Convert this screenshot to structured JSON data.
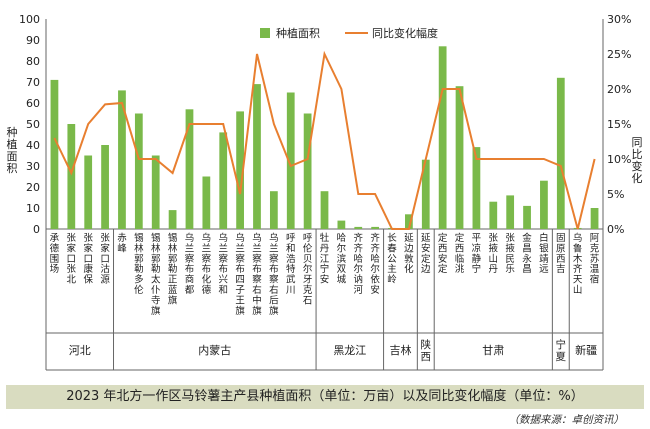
{
  "chart_data": {
    "type": "bar",
    "ylabel": "种植面积",
    "y2label": "同比变化",
    "ylim": [
      0,
      100
    ],
    "y2lim": [
      0,
      30
    ],
    "yticks": [
      "0",
      "10",
      "20",
      "30",
      "40",
      "50",
      "60",
      "70",
      "80",
      "90",
      "100"
    ],
    "y2ticks": [
      "0%",
      "5%",
      "10%",
      "15%",
      "20%",
      "25%",
      "30%"
    ],
    "legend_position": "top",
    "categories": [
      "承德围场",
      "张家口张北",
      "张家口康保",
      "张家口沽源",
      "赤峰",
      "锡林郭勒多伦",
      "锡林郭勒太仆寺旗",
      "锡林郭勒正蓝旗",
      "乌兰察布商都",
      "乌兰察布化德",
      "乌兰察布兴和",
      "乌兰察布四子王旗",
      "乌兰察布察右中旗",
      "乌兰察布察右后旗",
      "呼和浩特武川",
      "呼伦贝尔牙克石",
      "牡丹江宁安",
      "哈尔滨双城",
      "齐齐哈尔讷河",
      "齐齐哈尔依安",
      "长春公主岭",
      "延边敦化",
      "延安定边",
      "定西安定",
      "定西临洮",
      "平凉静宁",
      "张掖山丹",
      "张掖民乐",
      "金昌永昌",
      "白银靖远",
      "固原西吉",
      "乌鲁木齐天山",
      "阿克苏温宿"
    ],
    "series": [
      {
        "name": "种植面积",
        "type": "bar",
        "color": "#7ab94a",
        "values": [
          71,
          50,
          35,
          40,
          66,
          55,
          35,
          9,
          57,
          25,
          46,
          56,
          69,
          18,
          65,
          55,
          18,
          4,
          1,
          1,
          0.5,
          7,
          33,
          87,
          68,
          39,
          13,
          16,
          11,
          23,
          72,
          0.5,
          10
        ]
      },
      {
        "name": "同比变化幅度",
        "type": "line",
        "color": "#e87f30",
        "values": [
          13,
          8,
          15,
          17.8,
          18,
          10,
          10,
          8,
          15,
          15,
          15,
          5,
          25,
          15,
          9,
          10,
          25,
          20,
          5,
          5,
          0,
          0,
          10,
          20,
          20,
          10,
          10,
          10,
          10,
          10,
          9,
          0,
          10
        ]
      }
    ],
    "groups": [
      {
        "name": "河北",
        "start": 0,
        "end": 3
      },
      {
        "name": "内蒙古",
        "start": 4,
        "end": 15
      },
      {
        "name": "黑龙江",
        "start": 16,
        "end": 19
      },
      {
        "name": "吉林",
        "start": 20,
        "end": 21
      },
      {
        "name": "陕西",
        "start": 22,
        "end": 22
      },
      {
        "name": "甘肃",
        "start": 23,
        "end": 29
      },
      {
        "name": "宁夏",
        "start": 30,
        "end": 30
      },
      {
        "name": "新疆",
        "start": 31,
        "end": 32
      }
    ]
  },
  "footer": {
    "title": "2023 年北方一作区马铃薯主产县种植面积（单位：万亩）以及同比变化幅度（单位：%）",
    "source": "（数据来源：卓创资讯）"
  }
}
